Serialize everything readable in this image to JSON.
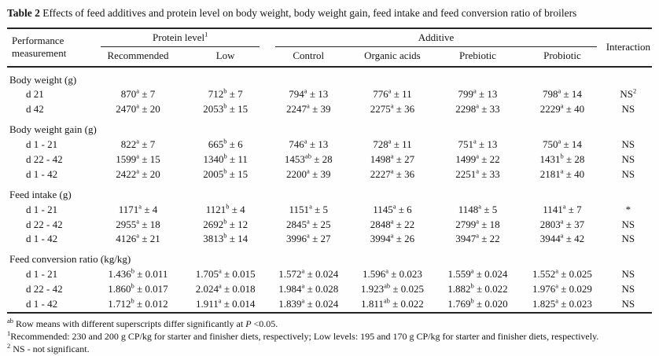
{
  "title": {
    "label": "Table 2",
    "text": "Effects of feed additives and protein level on body weight, body weight gain, feed intake and feed conversion ratio of broilers"
  },
  "header": {
    "perf": "Performance measurement",
    "protein_group": "Protein level",
    "protein_group_sup": "1",
    "additive_group": "Additive",
    "interaction": "Interaction",
    "subcols": [
      "Recommended",
      "Low",
      "Control",
      "Organic acids",
      "Prebiotic",
      "Probiotic"
    ]
  },
  "sections": [
    {
      "label": "Body weight (g)",
      "rows": [
        {
          "label": "d 21",
          "cells": [
            {
              "v": "870",
              "s": "a",
              "e": "± 7"
            },
            {
              "v": "712",
              "s": "b",
              "e": "± 7"
            },
            {
              "v": "794",
              "s": "a",
              "e": "± 13"
            },
            {
              "v": "776",
              "s": "a",
              "e": "± 11"
            },
            {
              "v": "799",
              "s": "a",
              "e": "± 13"
            },
            {
              "v": "798",
              "s": "a",
              "e": "± 14"
            }
          ],
          "interaction": {
            "v": "NS",
            "s": "2"
          }
        },
        {
          "label": "d 42",
          "cells": [
            {
              "v": "2470",
              "s": "a",
              "e": "± 20"
            },
            {
              "v": "2053",
              "s": "b",
              "e": "± 15"
            },
            {
              "v": "2247",
              "s": "a",
              "e": "± 39"
            },
            {
              "v": "2275",
              "s": "a",
              "e": "± 36"
            },
            {
              "v": "2298",
              "s": "a",
              "e": "± 33"
            },
            {
              "v": "2229",
              "s": "a",
              "e": "± 40"
            }
          ],
          "interaction": {
            "v": "NS",
            "s": ""
          }
        }
      ]
    },
    {
      "label": "Body weight gain (g)",
      "rows": [
        {
          "label": "d 1 - 21",
          "cells": [
            {
              "v": "822",
              "s": "a",
              "e": "± 7"
            },
            {
              "v": "665",
              "s": "b",
              "e": "± 6"
            },
            {
              "v": "746",
              "s": "a",
              "e": "± 13"
            },
            {
              "v": "728",
              "s": "a",
              "e": "± 11"
            },
            {
              "v": "751",
              "s": "a",
              "e": "± 13"
            },
            {
              "v": "750",
              "s": "a",
              "e": "± 14"
            }
          ],
          "interaction": {
            "v": "NS",
            "s": ""
          }
        },
        {
          "label": "d 22 - 42",
          "cells": [
            {
              "v": "1599",
              "s": "a",
              "e": "± 15"
            },
            {
              "v": "1340",
              "s": "b",
              "e": "± 11"
            },
            {
              "v": "1453",
              "s": "ab",
              "e": "± 28"
            },
            {
              "v": "1498",
              "s": "a",
              "e": "± 27"
            },
            {
              "v": "1499",
              "s": "a",
              "e": "± 22"
            },
            {
              "v": "1431",
              "s": "b",
              "e": "± 28"
            }
          ],
          "interaction": {
            "v": "NS",
            "s": ""
          }
        },
        {
          "label": "d 1 - 42",
          "cells": [
            {
              "v": "2422",
              "s": "a",
              "e": "± 20"
            },
            {
              "v": "2005",
              "s": "b",
              "e": "± 15"
            },
            {
              "v": "2200",
              "s": "a",
              "e": "± 39"
            },
            {
              "v": "2227",
              "s": "a",
              "e": "± 36"
            },
            {
              "v": "2251",
              "s": "a",
              "e": "± 33"
            },
            {
              "v": "2181",
              "s": "a",
              "e": "± 40"
            }
          ],
          "interaction": {
            "v": "NS",
            "s": ""
          }
        }
      ]
    },
    {
      "label": "Feed intake (g)",
      "rows": [
        {
          "label": "d 1 - 21",
          "cells": [
            {
              "v": "1171",
              "s": "a",
              "e": "± 4"
            },
            {
              "v": "1121",
              "s": "b",
              "e": "± 4"
            },
            {
              "v": "1151",
              "s": "a",
              "e": "± 5"
            },
            {
              "v": "1145",
              "s": "a",
              "e": "± 6"
            },
            {
              "v": "1148",
              "s": "a",
              "e": "± 5"
            },
            {
              "v": "1141",
              "s": "a",
              "e": "± 7"
            }
          ],
          "interaction": {
            "v": "*",
            "s": ""
          }
        },
        {
          "label": "d 22 - 42",
          "cells": [
            {
              "v": "2955",
              "s": "a",
              "e": "± 18"
            },
            {
              "v": "2692",
              "s": "b",
              "e": "± 12"
            },
            {
              "v": "2845",
              "s": "a",
              "e": "± 25"
            },
            {
              "v": "2848",
              "s": "a",
              "e": "± 22"
            },
            {
              "v": "2799",
              "s": "a",
              "e": "± 18"
            },
            {
              "v": "2803",
              "s": "a",
              "e": "± 37"
            }
          ],
          "interaction": {
            "v": "NS",
            "s": ""
          }
        },
        {
          "label": "d 1 - 42",
          "cells": [
            {
              "v": "4126",
              "s": "a",
              "e": "± 21"
            },
            {
              "v": "3813",
              "s": "b",
              "e": "± 14"
            },
            {
              "v": "3996",
              "s": "a",
              "e": "± 27"
            },
            {
              "v": "3994",
              "s": "a",
              "e": "± 26"
            },
            {
              "v": "3947",
              "s": "a",
              "e": "± 22"
            },
            {
              "v": "3944",
              "s": "a",
              "e": "± 42"
            }
          ],
          "interaction": {
            "v": "NS",
            "s": ""
          }
        }
      ]
    },
    {
      "label": "Feed conversion ratio (kg/kg)",
      "rows": [
        {
          "label": "d 1 - 21",
          "cells": [
            {
              "v": "1.436",
              "s": "b",
              "e": "± 0.011"
            },
            {
              "v": "1.705",
              "s": "a",
              "e": "± 0.015"
            },
            {
              "v": "1.572",
              "s": "a",
              "e": "± 0.024"
            },
            {
              "v": "1.596",
              "s": "a",
              "e": "± 0.023"
            },
            {
              "v": "1.559",
              "s": "a",
              "e": "± 0.024"
            },
            {
              "v": "1.552",
              "s": "a",
              "e": "± 0.025"
            }
          ],
          "interaction": {
            "v": "NS",
            "s": ""
          }
        },
        {
          "label": "d 22 - 42",
          "cells": [
            {
              "v": "1.860",
              "s": "b",
              "e": "± 0.017"
            },
            {
              "v": "2.024",
              "s": "a",
              "e": "± 0.018"
            },
            {
              "v": "1.984",
              "s": "a",
              "e": "± 0.028"
            },
            {
              "v": "1.923",
              "s": "ab",
              "e": "± 0.025"
            },
            {
              "v": "1.882",
              "s": "b",
              "e": "± 0.022"
            },
            {
              "v": "1.976",
              "s": "a",
              "e": "± 0.029"
            }
          ],
          "interaction": {
            "v": "NS",
            "s": ""
          }
        },
        {
          "label": "d 1 - 42",
          "cells": [
            {
              "v": "1.712",
              "s": "b",
              "e": "± 0.012"
            },
            {
              "v": "1.911",
              "s": "a",
              "e": "± 0.014"
            },
            {
              "v": "1.839",
              "s": "a",
              "e": "± 0.024"
            },
            {
              "v": "1.811",
              "s": "ab",
              "e": "± 0.022"
            },
            {
              "v": "1.769",
              "s": "b",
              "e": "± 0.020"
            },
            {
              "v": "1.825",
              "s": "a",
              "e": "± 0.023"
            }
          ],
          "interaction": {
            "v": "NS",
            "s": ""
          }
        }
      ]
    }
  ],
  "footnotes": {
    "sig": {
      "sup": "ab",
      "pre": " Row means with different superscripts differ significantly at ",
      "p_label": "P",
      "post": " <0.05."
    },
    "protein": {
      "sup": "1",
      "text": "Recommended: 230 and 200 g CP/kg for starter and finisher diets, respectively; Low levels: 195 and 170 g CP/kg for starter and finisher diets, respectively."
    },
    "ns": {
      "sup": "2",
      "text": " NS - not significant."
    }
  }
}
